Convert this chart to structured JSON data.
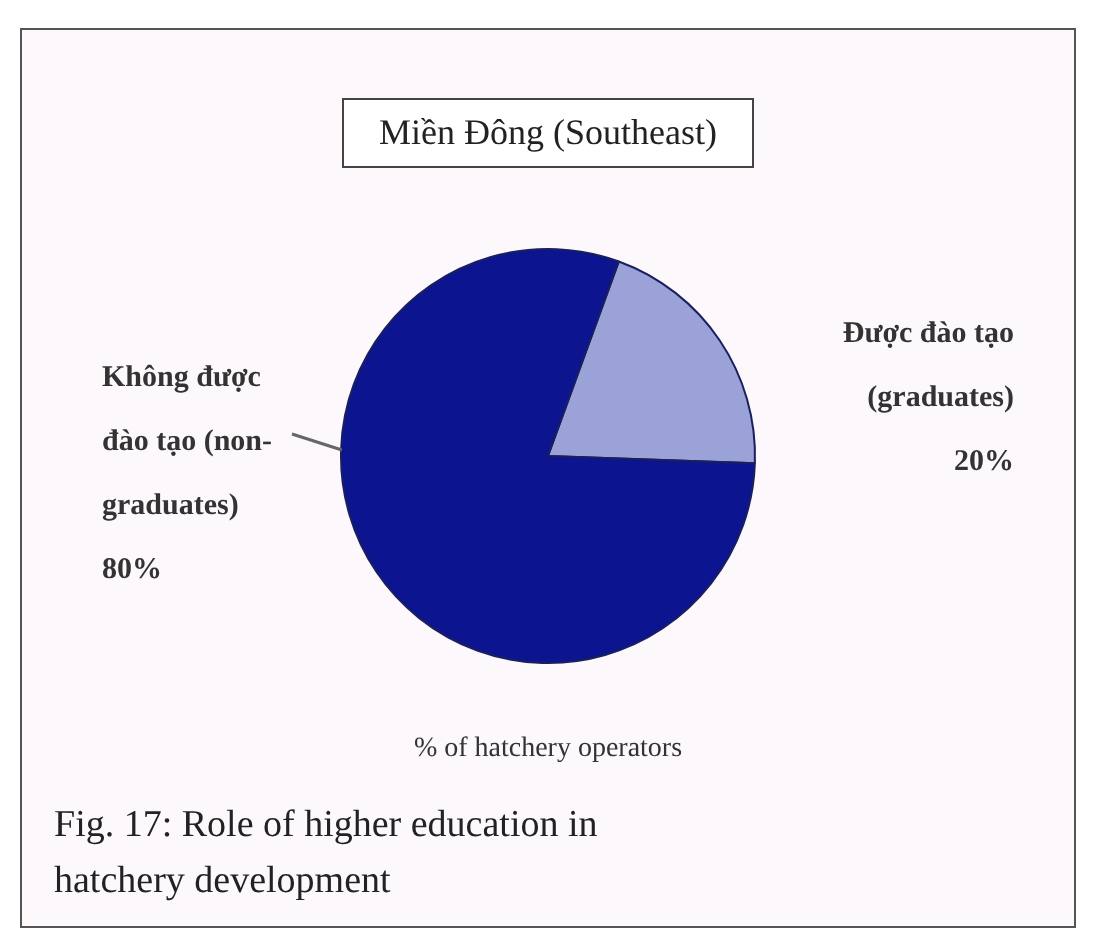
{
  "chart_data": {
    "type": "pie",
    "title": "Miền Đông (Southeast)",
    "xlabel": "% of hatchery operators",
    "categories": [
      "Được đào tạo (graduates)",
      "Không được đào tạo (non-graduates)"
    ],
    "values": [
      20,
      80
    ],
    "colors": [
      "#9aa2d8",
      "#0c1490"
    ],
    "value_labels": [
      "20%",
      "80%"
    ],
    "legend": false,
    "annotations": [
      "Fig. 17:  Role of higher education in hatchery development"
    ]
  }
}
